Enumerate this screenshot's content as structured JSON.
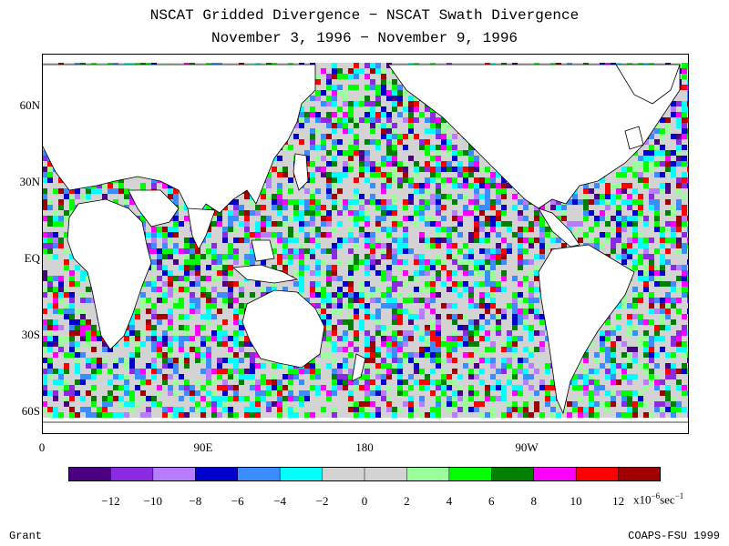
{
  "title_line1": "NSCAT Gridded Divergence − NSCAT Swath Divergence",
  "title_line2": "November 3, 1996 − November 9, 1996",
  "y_ticks": [
    "60N",
    "30N",
    "EQ",
    "30S",
    "60S"
  ],
  "x_ticks": [
    "0",
    "90E",
    "180",
    "90W"
  ],
  "colorbar": {
    "colors": [
      "#4b0082",
      "#8a2be2",
      "#b77cff",
      "#0000cd",
      "#3a8cff",
      "#00ffff",
      "#d3d3d3",
      "#d3d3d3",
      "#9aff9a",
      "#00ff00",
      "#008000",
      "#ff00ff",
      "#ff0000",
      "#a00000"
    ],
    "labels": [
      "−12",
      "−10",
      "−8",
      "−6",
      "−4",
      "−2",
      "0",
      "2",
      "4",
      "6",
      "8",
      "10",
      "12"
    ],
    "unit_base": "x10",
    "unit_exp": "−6",
    "unit_mid": "sec",
    "unit_exp2": "−1"
  },
  "footer_left": "Grant",
  "footer_right": "COAPS-FSU 1999"
}
